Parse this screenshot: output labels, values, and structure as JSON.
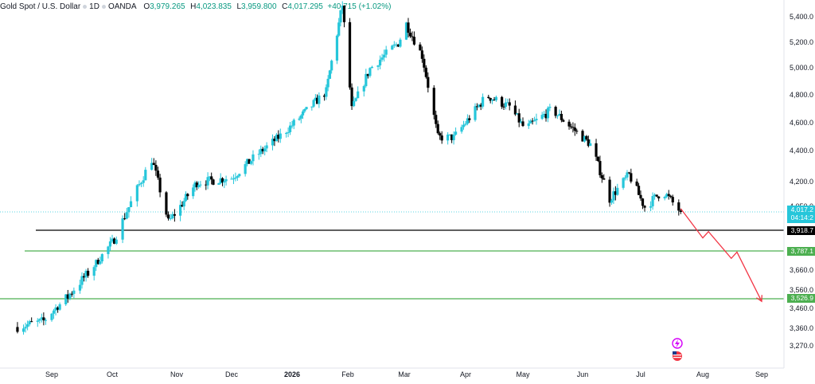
{
  "legend": {
    "symbol": "Gold Spot / U.S. Dollar",
    "interval": "1D",
    "broker": "OANDA",
    "open_label": "O",
    "open": "3,979.265",
    "high_label": "H",
    "high": "4,023.835",
    "low_label": "L",
    "low": "3,959.800",
    "close_label": "C",
    "close": "4,017.295",
    "change": "+40.715 (+1.02%)"
  },
  "colors": {
    "up": "#26c6da",
    "down": "#000000",
    "support": "#4caf50",
    "projection": "#f23645",
    "price_line": "#26c6da"
  },
  "badges": {
    "price": "4,017.2",
    "countdown": "04:14:2",
    "black_level": "3,918.7",
    "green_level_1": "3,787.1",
    "green_level_2": "3,526.9"
  },
  "chart_data": {
    "type": "candlestick",
    "title": "Gold Spot / U.S. Dollar · 1D · OANDA",
    "y_ticks": [
      "5,400.0",
      "5,200.0",
      "5,000.0",
      "4,800.0",
      "4,600.0",
      "4,400.0",
      "4,200.0",
      "4,050.0",
      "3,660.0",
      "3,560.0",
      "3,460.0",
      "3,360.0",
      "3,270.0"
    ],
    "y_tick_values": [
      5400,
      5200,
      5000,
      4800,
      4600,
      4400,
      4200,
      4050,
      3660,
      3560,
      3460,
      3360,
      3270
    ],
    "x_ticks": [
      {
        "label": "Sep",
        "date": "2025-09-01",
        "bold": false
      },
      {
        "label": "Oct",
        "date": "2025-10-01",
        "bold": false
      },
      {
        "label": "Nov",
        "date": "2025-11-01",
        "bold": false
      },
      {
        "label": "Dec",
        "date": "2025-12-01",
        "bold": false
      },
      {
        "label": "2026",
        "date": "2026-01-01",
        "bold": true
      },
      {
        "label": "Feb",
        "date": "2026-02-01",
        "bold": false
      },
      {
        "label": "Mar",
        "date": "2026-03-01",
        "bold": false
      },
      {
        "label": "Apr",
        "date": "2026-04-01",
        "bold": false
      },
      {
        "label": "May",
        "date": "2026-05-01",
        "bold": false
      },
      {
        "label": "Jun",
        "date": "2026-06-01",
        "bold": false
      },
      {
        "label": "Jul",
        "date": "2026-07-01",
        "bold": false
      },
      {
        "label": "Aug",
        "date": "2026-08-01",
        "bold": false
      },
      {
        "label": "Sep",
        "date": "2026-09-01",
        "bold": false
      }
    ],
    "price_key_points": [
      {
        "date": "2025-08-15",
        "close": 3370
      },
      {
        "date": "2025-08-28",
        "close": 3400
      },
      {
        "date": "2025-09-20",
        "close": 3660
      },
      {
        "date": "2025-10-02",
        "close": 3860
      },
      {
        "date": "2025-10-20",
        "close": 4350
      },
      {
        "date": "2025-10-28",
        "close": 3960
      },
      {
        "date": "2025-11-12",
        "close": 4200
      },
      {
        "date": "2025-12-01",
        "close": 4230
      },
      {
        "date": "2025-12-25",
        "close": 4500
      },
      {
        "date": "2026-01-20",
        "close": 4830
      },
      {
        "date": "2026-01-29",
        "close": 5500
      },
      {
        "date": "2026-02-03",
        "close": 4700
      },
      {
        "date": "2026-02-12",
        "close": 5000
      },
      {
        "date": "2026-02-26",
        "close": 5200
      },
      {
        "date": "2026-03-02",
        "close": 5350
      },
      {
        "date": "2026-03-10",
        "close": 5100
      },
      {
        "date": "2026-03-18",
        "close": 4500
      },
      {
        "date": "2026-03-26",
        "close": 4500
      },
      {
        "date": "2026-04-12",
        "close": 4800
      },
      {
        "date": "2026-04-24",
        "close": 4720
      },
      {
        "date": "2026-05-02",
        "close": 4560
      },
      {
        "date": "2026-05-16",
        "close": 4700
      },
      {
        "date": "2026-06-05",
        "close": 4450
      },
      {
        "date": "2026-06-15",
        "close": 4100
      },
      {
        "date": "2026-06-25",
        "close": 4250
      },
      {
        "date": "2026-07-03",
        "close": 4050
      },
      {
        "date": "2026-07-12",
        "close": 4150
      },
      {
        "date": "2026-07-21",
        "close": 4017
      }
    ],
    "last_close": 4017.295,
    "horizontal_levels": [
      {
        "value": 3918.7,
        "color": "black"
      },
      {
        "value": 3787.1,
        "color": "green"
      },
      {
        "value": 3526.9,
        "color": "green"
      }
    ],
    "projection_path": [
      {
        "date": "2026-07-21",
        "price": 4040
      },
      {
        "date": "2026-08-01",
        "price": 3870
      },
      {
        "date": "2026-08-04",
        "price": 3910
      },
      {
        "date": "2026-08-16",
        "price": 3740
      },
      {
        "date": "2026-08-19",
        "price": 3780
      },
      {
        "date": "2026-09-01",
        "price": 3510
      }
    ]
  }
}
